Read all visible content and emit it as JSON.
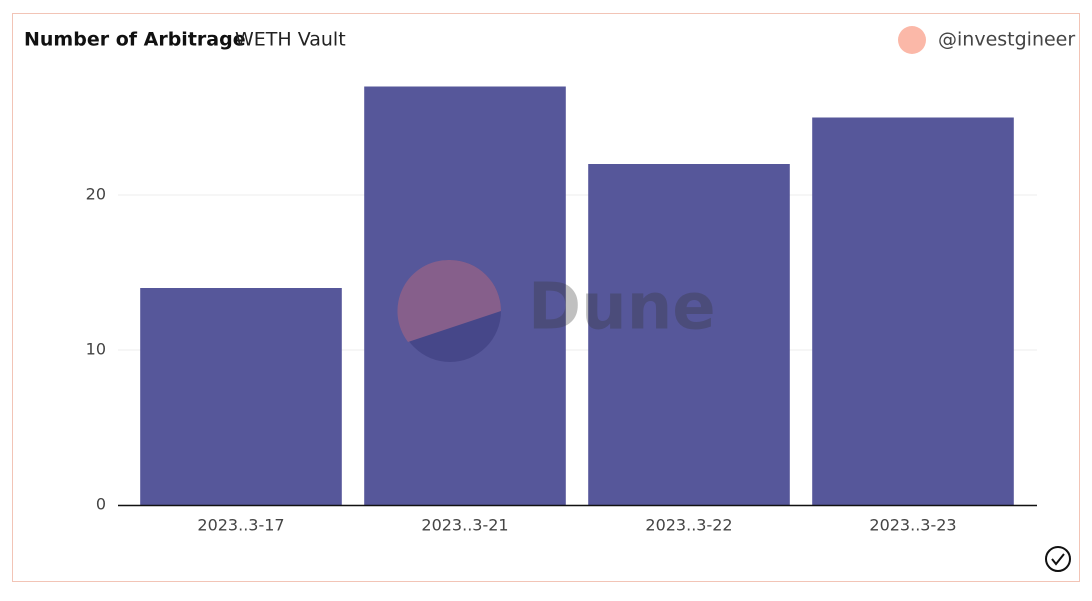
{
  "chart_data": {
    "type": "bar",
    "title": "Number of Arbitrage",
    "subtitle": "WETH Vault",
    "author": "@investgineer",
    "watermark": "Dune",
    "categories": [
      "2023..3-17",
      "2023..3-21",
      "2023..3-22",
      "2023..3-23"
    ],
    "values": [
      14,
      27,
      22,
      25
    ],
    "color": "#56579a",
    "ylim": [
      0,
      28
    ],
    "yticks": [
      0,
      10,
      20
    ],
    "grid": true
  }
}
